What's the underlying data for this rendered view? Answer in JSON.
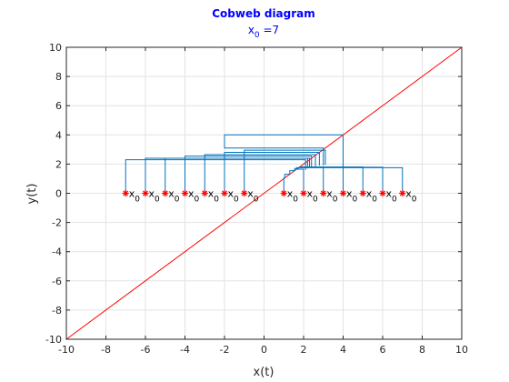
{
  "chart_data": {
    "type": "line",
    "title": "Cobweb diagram",
    "subtitle": {
      "main": "x",
      "sub": "0",
      "rest": " =7"
    },
    "xlabel": "x(t)",
    "ylabel": "y(t)",
    "xlim": [
      -10,
      10
    ],
    "ylim": [
      -10,
      10
    ],
    "xticks": [
      -10,
      -8,
      -6,
      -4,
      -2,
      0,
      2,
      4,
      6,
      8,
      10
    ],
    "yticks": [
      -10,
      -8,
      -6,
      -4,
      -2,
      0,
      2,
      4,
      6,
      8,
      10
    ],
    "grid": true,
    "identity_line": {
      "color": "#ff0000",
      "from": [
        -10,
        -10
      ],
      "to": [
        10,
        10
      ]
    },
    "cobweb_color": "#0072bd",
    "start_marker_color": "#ff0000",
    "start_label": {
      "main": "x",
      "sub": "0"
    },
    "series": [
      {
        "x0": -7,
        "path": [
          [
            -7,
            0
          ],
          [
            -7,
            2.3
          ],
          [
            2.1,
            2.3
          ],
          [
            2.1,
            1.6
          ]
        ]
      },
      {
        "x0": -6,
        "path": [
          [
            -6,
            0
          ],
          [
            -6,
            2.4
          ],
          [
            2.2,
            2.4
          ],
          [
            2.2,
            1.7
          ]
        ]
      },
      {
        "x0": -5,
        "path": [
          [
            -5,
            0
          ],
          [
            -5,
            2.4
          ],
          [
            2.3,
            2.4
          ],
          [
            2.3,
            1.75
          ]
        ]
      },
      {
        "x0": -4,
        "path": [
          [
            -4,
            0
          ],
          [
            -4,
            2.55
          ],
          [
            2.4,
            2.55
          ],
          [
            2.4,
            1.8
          ]
        ]
      },
      {
        "x0": -3,
        "path": [
          [
            -3,
            0
          ],
          [
            -3,
            2.65
          ],
          [
            2.6,
            2.65
          ],
          [
            2.6,
            1.85
          ]
        ]
      },
      {
        "x0": -2,
        "path": [
          [
            -2,
            0
          ],
          [
            -2,
            2.8
          ],
          [
            2.8,
            2.8
          ],
          [
            2.8,
            1.9
          ]
        ]
      },
      {
        "x0": -1,
        "path": [
          [
            -1,
            0
          ],
          [
            -1,
            2.95
          ],
          [
            3.1,
            2.95
          ],
          [
            3.1,
            1.95
          ]
        ]
      },
      {
        "x0": 1,
        "path": [
          [
            1,
            0
          ],
          [
            1,
            1.05
          ],
          [
            1.05,
            1.05
          ],
          [
            1.05,
            1.3
          ],
          [
            1.3,
            1.3
          ],
          [
            1.3,
            1.55
          ],
          [
            1.55,
            1.55
          ],
          [
            1.55,
            1.7
          ],
          [
            1.7,
            1.7
          ]
        ]
      },
      {
        "x0": 2,
        "path": [
          [
            2,
            0
          ],
          [
            2,
            1.65
          ],
          [
            1.65,
            1.65
          ],
          [
            1.65,
            1.75
          ],
          [
            1.75,
            1.75
          ]
        ]
      },
      {
        "x0": 3,
        "path": [
          [
            3,
            0
          ],
          [
            3,
            1.8
          ],
          [
            1.8,
            1.8
          ],
          [
            1.8,
            1.75
          ]
        ]
      },
      {
        "x0": 4,
        "path": [
          [
            4,
            0
          ],
          [
            4,
            4.0
          ],
          [
            -2,
            4.0
          ],
          [
            -2,
            3.1
          ],
          [
            3.0,
            3.1
          ],
          [
            3.0,
            1.9
          ]
        ]
      },
      {
        "x0": 5,
        "path": [
          [
            5,
            0
          ],
          [
            5,
            1.8
          ],
          [
            1.8,
            1.8
          ],
          [
            1.8,
            1.78
          ]
        ]
      },
      {
        "x0": 6,
        "path": [
          [
            6,
            0
          ],
          [
            6,
            1.78
          ],
          [
            1.8,
            1.78
          ]
        ]
      },
      {
        "x0": 7,
        "path": [
          [
            7,
            0
          ],
          [
            7,
            1.75
          ],
          [
            1.75,
            1.75
          ],
          [
            1.75,
            1.7
          ]
        ]
      }
    ]
  }
}
